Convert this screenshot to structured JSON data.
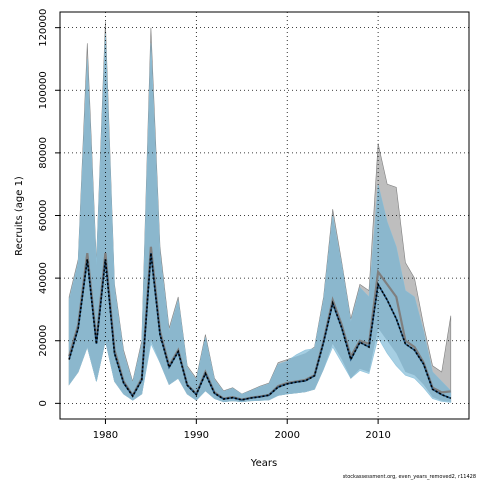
{
  "chart_data": {
    "type": "line",
    "title": "",
    "xlabel": "Years",
    "ylabel": "Recruits (age 1)",
    "xlim": [
      1975,
      2020
    ],
    "ylim": [
      -5000,
      125000
    ],
    "x_ticks": [
      1980,
      1990,
      2000,
      2010
    ],
    "y_ticks": [
      0,
      20000,
      40000,
      60000,
      80000,
      100000,
      120000
    ],
    "grid": true,
    "footnote": "stockassessment.org, even_years_removed2, r11428",
    "colors": {
      "grey_band": "#bebebe",
      "grey_line": "#7f7f7f",
      "blue_band": "#a6cfe3",
      "blue_band_overlap": "#8bb7cd",
      "blue_line": "#1f4f7a",
      "estimate_line": "#000000"
    },
    "x": [
      1976,
      1977,
      1978,
      1979,
      1980,
      1981,
      1982,
      1983,
      1984,
      1985,
      1986,
      1987,
      1988,
      1989,
      1990,
      1991,
      1992,
      1993,
      1994,
      1995,
      1996,
      1997,
      1998,
      1999,
      2000,
      2001,
      2002,
      2003,
      2004,
      2005,
      2006,
      2007,
      2008,
      2009,
      2010,
      2011,
      2012,
      2013,
      2014,
      2015,
      2016,
      2017,
      2018
    ],
    "series": [
      {
        "key": "run_a",
        "style": "grey",
        "estimate": [
          15000,
          25000,
          48000,
          20000,
          48000,
          17000,
          7000,
          2500,
          8000,
          50000,
          23000,
          12000,
          17000,
          6000,
          3000,
          10000,
          3500,
          1500,
          2000,
          1200,
          1800,
          2200,
          2700,
          5500,
          6500,
          7000,
          7500,
          9000,
          20000,
          33000,
          25000,
          15000,
          20000,
          19000,
          42000,
          38000,
          34000,
          20000,
          18000,
          13000,
          5000,
          3500,
          3800
        ],
        "lower": [
          6000,
          10000,
          18000,
          7000,
          20000,
          7000,
          3000,
          1000,
          3000,
          20000,
          13000,
          6000,
          8000,
          3000,
          1000,
          4000,
          1500,
          500,
          800,
          500,
          800,
          900,
          1100,
          2500,
          3000,
          3300,
          3700,
          4500,
          11000,
          19000,
          14000,
          8000,
          11000,
          10000,
          24000,
          20000,
          16000,
          10000,
          9000,
          6000,
          2000,
          800,
          500
        ],
        "upper": [
          34000,
          46000,
          115000,
          45000,
          122000,
          38000,
          17000,
          7000,
          20000,
          120000,
          50000,
          24000,
          34000,
          12000,
          8000,
          22000,
          8000,
          4000,
          5000,
          3000,
          4200,
          5500,
          6500,
          13000,
          14000,
          15000,
          16000,
          18000,
          34000,
          62000,
          45000,
          27000,
          38000,
          36000,
          83000,
          70000,
          69000,
          45000,
          40000,
          25000,
          12000,
          10000,
          28000
        ]
      },
      {
        "key": "run_b",
        "style": "blue",
        "estimate": [
          14000,
          24000,
          46000,
          19000,
          46000,
          16000,
          6500,
          2300,
          7500,
          48000,
          22000,
          11500,
          16500,
          5800,
          2800,
          9500,
          3200,
          1400,
          1800,
          1100,
          1700,
          2100,
          2600,
          5200,
          6200,
          6800,
          7200,
          8800,
          19500,
          32000,
          24000,
          14000,
          19500,
          18000,
          38000,
          33000,
          27000,
          19000,
          17000,
          12500,
          4500,
          2800,
          1600
        ],
        "lower": [
          6000,
          10000,
          18000,
          7000,
          20000,
          7000,
          3000,
          1000,
          3000,
          19000,
          13000,
          6000,
          8000,
          3000,
          1000,
          4000,
          1500,
          500,
          800,
          500,
          800,
          900,
          1100,
          2500,
          3000,
          3300,
          3700,
          4500,
          11000,
          18000,
          13000,
          8000,
          10500,
          9500,
          21000,
          16000,
          12000,
          9000,
          8000,
          5000,
          1500,
          600,
          300
        ],
        "upper": [
          33000,
          45000,
          110000,
          44000,
          118000,
          37000,
          16000,
          6500,
          19000,
          115000,
          48000,
          23000,
          33000,
          11500,
          7500,
          21000,
          7500,
          3800,
          4800,
          2900,
          4000,
          5300,
          6200,
          12500,
          13500,
          15500,
          17000,
          17500,
          33000,
          60000,
          44000,
          26000,
          37000,
          34000,
          70000,
          58000,
          50000,
          36000,
          34000,
          23000,
          10000,
          7000,
          4000
        ]
      }
    ]
  }
}
